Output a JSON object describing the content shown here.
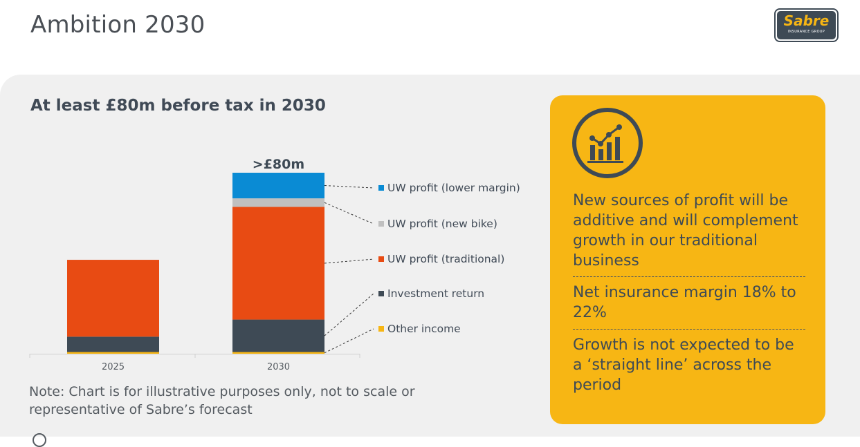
{
  "slide": {
    "title": "Ambition 2030"
  },
  "logo": {
    "name": "Sabre",
    "subtext": "INSURANCE GROUP"
  },
  "chart_data": {
    "type": "bar",
    "subtype": "stacked",
    "title": "At least £80m before tax in 2030",
    "categories": [
      "2025",
      "2030"
    ],
    "series": [
      {
        "name": "Other income",
        "color": "#f7b614",
        "values": [
          1,
          1
        ]
      },
      {
        "name": "Investment return",
        "color": "#3e4a55",
        "values": [
          9,
          19
        ]
      },
      {
        "name": "UW profit (traditional)",
        "color": "#e84b13",
        "values": [
          45,
          66
        ]
      },
      {
        "name": "UW profit (new bike)",
        "color": "#c0c0c0",
        "values": [
          0,
          5
        ]
      },
      {
        "name": "UW profit (lower margin)",
        "color": "#0a8bd4",
        "values": [
          0,
          15
        ]
      }
    ],
    "total_labels": [
      "",
      ">£80m"
    ],
    "legend_position": "right",
    "gridlines": false,
    "ylim": [
      0,
      106
    ]
  },
  "note": "Note: Chart is for illustrative purposes only, not to scale or representative of Sabre’s forecast",
  "callout": {
    "icon": "growth-chart-icon",
    "color": "#f7b614",
    "points": [
      "New sources of profit will be additive and will complement growth in our traditional business",
      "Net insurance margin 18% to 22%",
      "Growth is not expected to be a ‘straight line’ across the period"
    ]
  }
}
